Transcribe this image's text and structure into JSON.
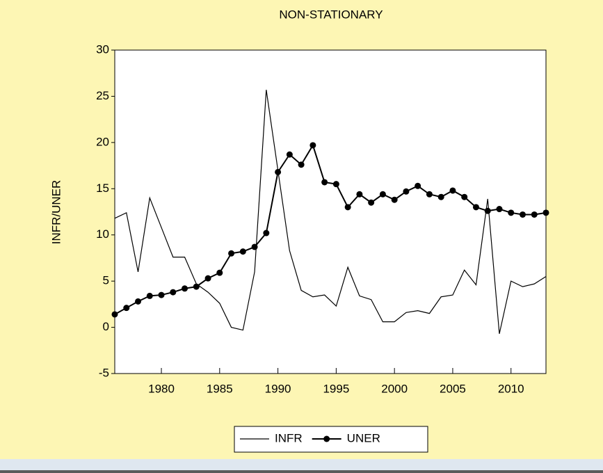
{
  "chart_data": {
    "type": "line",
    "title": "NON-STATIONARY",
    "y_label": "INFR/UNER",
    "x": [
      1976,
      1977,
      1978,
      1979,
      1980,
      1981,
      1982,
      1983,
      1984,
      1985,
      1986,
      1987,
      1988,
      1989,
      1990,
      1991,
      1992,
      1993,
      1994,
      1995,
      1996,
      1997,
      1998,
      1999,
      2000,
      2001,
      2002,
      2003,
      2004,
      2005,
      2006,
      2007,
      2008,
      2009,
      2010,
      2011,
      2012,
      2013
    ],
    "series": [
      {
        "name": "INFR",
        "color": "#000000",
        "marker": false,
        "values": [
          11.8,
          12.4,
          6.0,
          14.0,
          10.8,
          7.6,
          7.6,
          4.7,
          3.8,
          2.6,
          0.0,
          -0.3,
          6.0,
          25.7,
          17.0,
          8.3,
          4.0,
          3.3,
          3.5,
          2.3,
          6.5,
          3.4,
          3.0,
          0.6,
          0.6,
          1.6,
          1.8,
          1.5,
          3.3,
          3.5,
          6.2,
          4.6,
          13.9,
          -0.7,
          5.0,
          4.4,
          4.7,
          5.5
        ]
      },
      {
        "name": "UNER",
        "color": "#000000",
        "marker": true,
        "values": [
          1.4,
          2.1,
          2.8,
          3.4,
          3.5,
          3.8,
          4.2,
          4.4,
          5.3,
          5.9,
          8.0,
          8.2,
          8.7,
          10.2,
          16.8,
          18.7,
          17.6,
          19.7,
          15.7,
          15.5,
          13.0,
          14.4,
          13.5,
          14.4,
          13.8,
          14.7,
          15.3,
          14.4,
          14.1,
          14.8,
          14.1,
          13.0,
          12.6,
          12.8,
          12.4,
          12.2,
          12.2,
          12.4
        ]
      }
    ],
    "xlim": [
      1976,
      2013
    ],
    "xticks": [
      1980,
      1985,
      1990,
      1995,
      2000,
      2005,
      2010
    ],
    "ylim": [
      -5,
      30
    ],
    "yticks": [
      -5,
      0,
      5,
      10,
      15,
      20,
      25,
      30
    ],
    "legend": "bottom"
  }
}
